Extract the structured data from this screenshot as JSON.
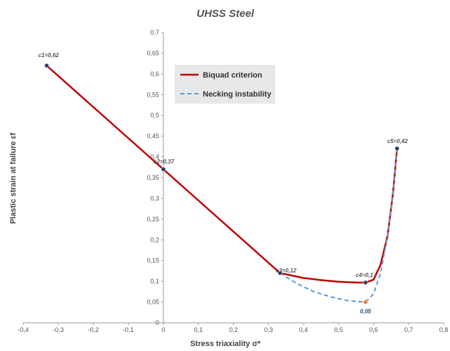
{
  "chart_data": {
    "type": "line",
    "title": "UHSS Steel",
    "xlabel": "Stress triaxiality σ*",
    "ylabel": "Plastic strain at failure εf",
    "xlim": [
      -0.4,
      0.8
    ],
    "ylim": [
      0,
      0.7
    ],
    "x_ticks": [
      "-0,4",
      "-0,3",
      "-0,2",
      "-0,1",
      "0",
      "0,1",
      "0,2",
      "0,3",
      "0,4",
      "0,5",
      "0,6",
      "0,7",
      "0,8"
    ],
    "y_ticks": [
      "0",
      "0,05",
      "0,1",
      "0,15",
      "0,2",
      "0,25",
      "0,3",
      "0,35",
      "0,4",
      "0,45",
      "0,5",
      "0,55",
      "0,6",
      "0,65",
      "0,7"
    ],
    "grid": false,
    "legend_position": "top-center",
    "series": [
      {
        "name": "Biquad criterion",
        "style": "solid",
        "color": "#c00000",
        "points": [
          [
            -0.333,
            0.62
          ],
          [
            0,
            0.37
          ],
          [
            0.333,
            0.12
          ],
          [
            0.4,
            0.108
          ],
          [
            0.45,
            0.103
          ],
          [
            0.5,
            0.099
          ],
          [
            0.55,
            0.097
          ],
          [
            0.577,
            0.097
          ],
          [
            0.6,
            0.104
          ],
          [
            0.62,
            0.14
          ],
          [
            0.64,
            0.21
          ],
          [
            0.655,
            0.31
          ],
          [
            0.667,
            0.42
          ]
        ]
      },
      {
        "name": "Necking instability",
        "style": "dashed",
        "color": "#5b9bd5",
        "points": [
          [
            0.333,
            0.12
          ],
          [
            0.38,
            0.095
          ],
          [
            0.43,
            0.075
          ],
          [
            0.48,
            0.062
          ],
          [
            0.53,
            0.053
          ],
          [
            0.577,
            0.05
          ],
          [
            0.6,
            0.07
          ],
          [
            0.62,
            0.12
          ],
          [
            0.64,
            0.21
          ],
          [
            0.655,
            0.31
          ],
          [
            0.667,
            0.42
          ]
        ]
      }
    ],
    "markers": [
      {
        "x": -0.333,
        "y": 0.62,
        "label": "c1=0,62",
        "color": "#2e3d5c"
      },
      {
        "x": 0,
        "y": 0.37,
        "label": "c2=0,37",
        "color": "#2e3d5c"
      },
      {
        "x": 0.333,
        "y": 0.12,
        "label": "c3=0,12",
        "color": "#2e3d5c"
      },
      {
        "x": 0.577,
        "y": 0.097,
        "label": "c4=0,1",
        "color": "#2e3d5c"
      },
      {
        "x": 0.667,
        "y": 0.42,
        "label": "c5=0,42",
        "color": "#2e3d5c"
      },
      {
        "x": 0.577,
        "y": 0.05,
        "label": "0,05",
        "color": "#ed7d31"
      }
    ]
  }
}
